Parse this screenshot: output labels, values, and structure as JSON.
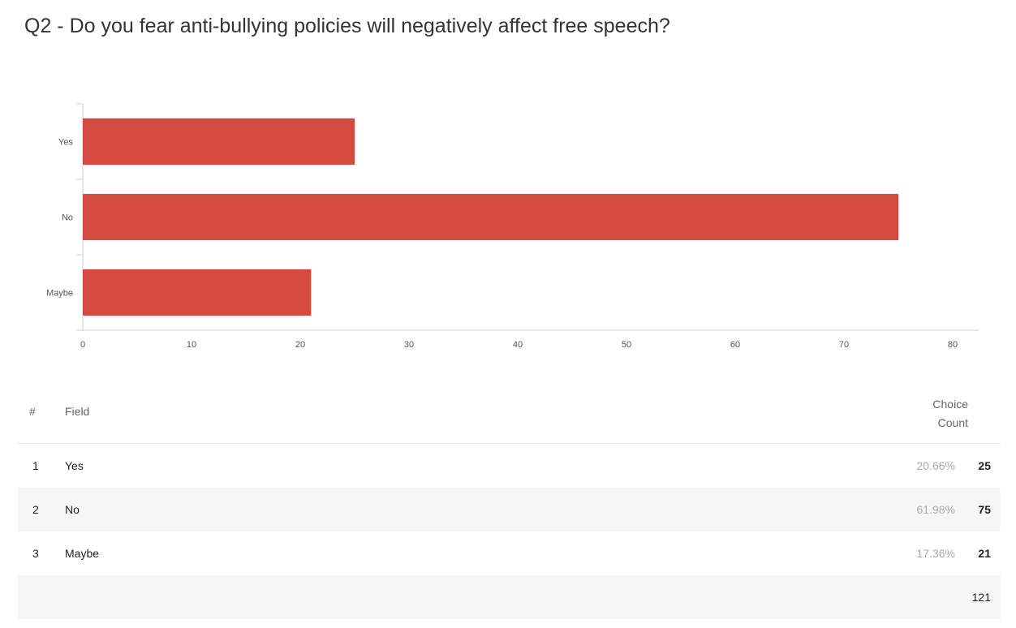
{
  "title": "Q2 - Do you fear anti-bullying policies will negatively affect free speech?",
  "bar_color": "#d44a3c",
  "chart_data": {
    "type": "bar",
    "orientation": "horizontal",
    "categories": [
      "Yes",
      "No",
      "Maybe"
    ],
    "values": [
      25,
      75,
      21
    ],
    "xlim": [
      0,
      80
    ],
    "xticks": [
      "0",
      "10",
      "20",
      "30",
      "40",
      "50",
      "60",
      "70",
      "80"
    ],
    "grid": false
  },
  "table": {
    "header": {
      "num": "#",
      "field": "Field",
      "count_line1": "Choice",
      "count_line2": "Count"
    },
    "rows": [
      {
        "num": "1",
        "field": "Yes",
        "pct": "20.66%",
        "count": "25"
      },
      {
        "num": "2",
        "field": "No",
        "pct": "61.98%",
        "count": "75"
      },
      {
        "num": "3",
        "field": "Maybe",
        "pct": "17.36%",
        "count": "21"
      }
    ],
    "total": "121"
  }
}
